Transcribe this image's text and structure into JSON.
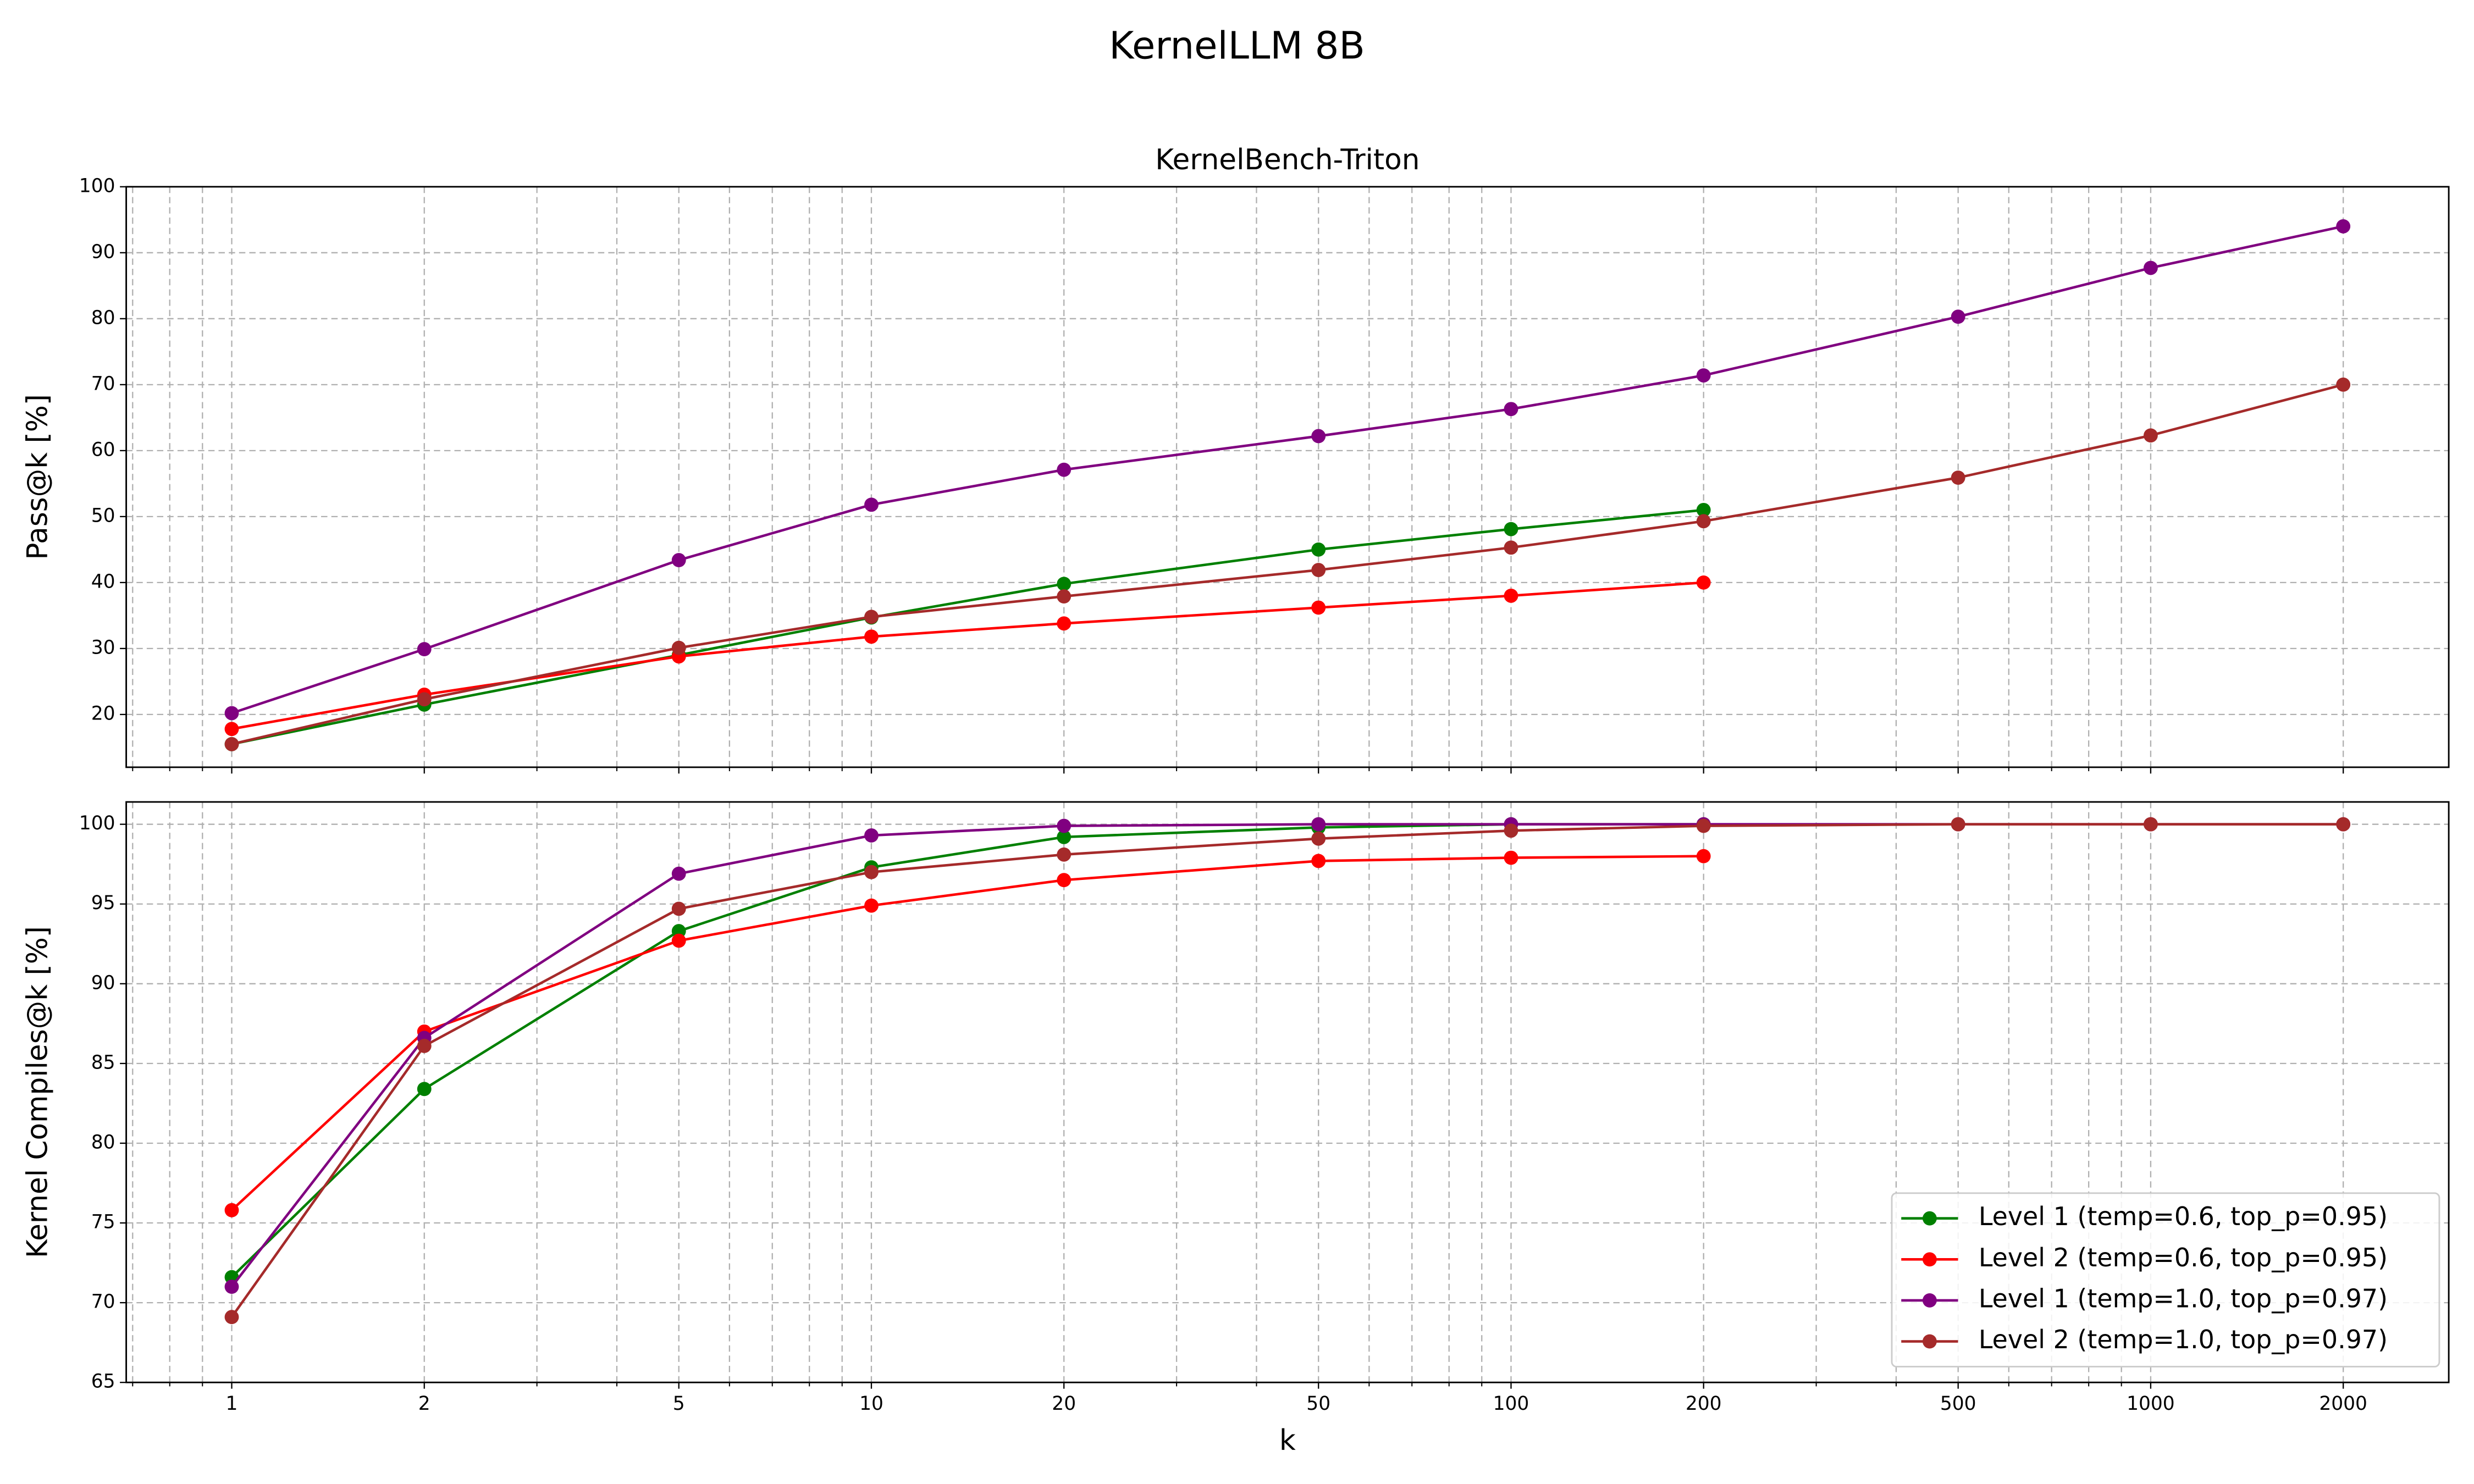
{
  "title": "KernelLLM 8B",
  "chart_data": [
    {
      "type": "line",
      "title": "KernelBench-Triton",
      "ylabel": "Pass@k [%]",
      "x": [
        1,
        2,
        5,
        10,
        20,
        50,
        100,
        200,
        500,
        1000,
        2000
      ],
      "xscale": "log",
      "xlim": [
        0.684,
        2924
      ],
      "xticks": [
        1,
        2,
        5,
        10,
        20,
        50,
        100,
        200,
        500,
        1000,
        2000
      ],
      "xminorticks": [
        0.7,
        0.8,
        0.9,
        3,
        4,
        6,
        7,
        8,
        9,
        30,
        40,
        60,
        70,
        80,
        90,
        300,
        400,
        600,
        700,
        800,
        900
      ],
      "ylim": [
        12,
        100
      ],
      "yticks": [
        20,
        30,
        40,
        50,
        60,
        70,
        80,
        90,
        100
      ],
      "grid": true,
      "series": [
        {
          "name": "Level 1 (temp=0.6, top_p=0.95)",
          "color": "#008000",
          "values": [
            15.5,
            21.5,
            29,
            34.7,
            39.8,
            45,
            48.1,
            51,
            null,
            null,
            null
          ]
        },
        {
          "name": "Level 2 (temp=0.6, top_p=0.95)",
          "color": "#ff0000",
          "values": [
            17.8,
            23,
            28.8,
            31.8,
            33.8,
            36.2,
            38,
            40,
            null,
            null,
            null
          ]
        },
        {
          "name": "Level 1 (temp=1.0, top_p=0.97)",
          "color": "#800080",
          "values": [
            20.2,
            29.9,
            43.4,
            51.8,
            57.1,
            62.2,
            66.3,
            71.4,
            80.3,
            87.7,
            94
          ]
        },
        {
          "name": "Level 2 (temp=1.0, top_p=0.97)",
          "color": "#a52a2a",
          "values": [
            15.5,
            22.3,
            30.1,
            34.8,
            37.9,
            41.9,
            45.3,
            49.3,
            55.9,
            62.3,
            70
          ]
        }
      ]
    },
    {
      "type": "line",
      "xlabel": "k",
      "ylabel": "Kernel Compiles@k [%]",
      "x": [
        1,
        2,
        5,
        10,
        20,
        50,
        100,
        200,
        500,
        1000,
        2000
      ],
      "xscale": "log",
      "xlim": [
        0.684,
        2924
      ],
      "xticks": [
        1,
        2,
        5,
        10,
        20,
        50,
        100,
        200,
        500,
        1000,
        2000
      ],
      "xminorticks": [
        0.7,
        0.8,
        0.9,
        3,
        4,
        6,
        7,
        8,
        9,
        30,
        40,
        60,
        70,
        80,
        90,
        300,
        400,
        600,
        700,
        800,
        900
      ],
      "ylim": [
        65,
        101.4
      ],
      "yticks": [
        65,
        70,
        75,
        80,
        85,
        90,
        95,
        100
      ],
      "grid": true,
      "legend": "lower right",
      "series": [
        {
          "name": "Level 1 (temp=0.6, top_p=0.95)",
          "color": "#008000",
          "values": [
            71.6,
            83.4,
            93.3,
            97.3,
            99.2,
            99.8,
            100,
            100,
            null,
            null,
            null
          ]
        },
        {
          "name": "Level 2 (temp=0.6, top_p=0.95)",
          "color": "#ff0000",
          "values": [
            75.8,
            87,
            92.7,
            94.9,
            96.5,
            97.7,
            97.9,
            98,
            null,
            null,
            null
          ]
        },
        {
          "name": "Level 1 (temp=1.0, top_p=0.97)",
          "color": "#800080",
          "values": [
            71,
            86.6,
            96.9,
            99.3,
            99.9,
            100,
            100,
            100,
            100,
            100,
            100
          ]
        },
        {
          "name": "Level 2 (temp=1.0, top_p=0.97)",
          "color": "#a52a2a",
          "values": [
            69.1,
            86.1,
            94.7,
            97,
            98.1,
            99.1,
            99.6,
            99.9,
            100,
            100,
            100
          ]
        }
      ]
    }
  ]
}
